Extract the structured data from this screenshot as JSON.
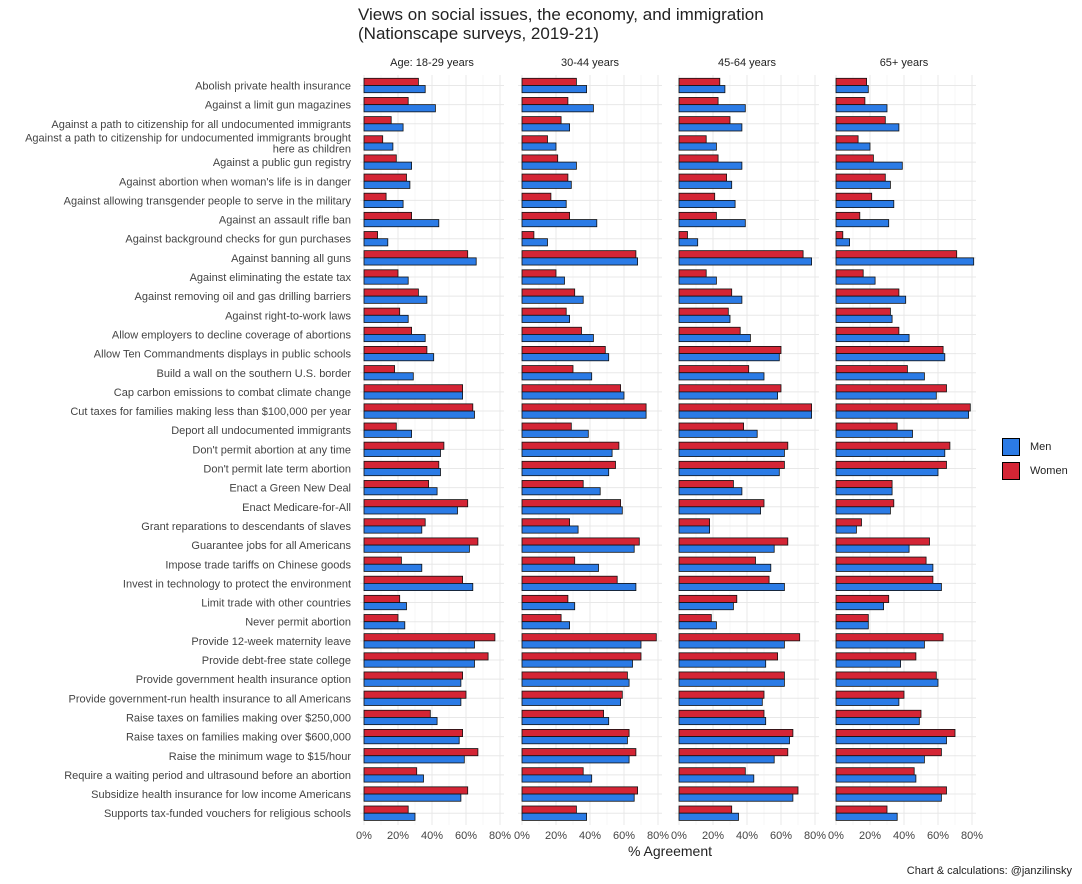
{
  "title": "Views on social issues, the economy, and immigration",
  "subtitle": "(Nationscape surveys, 2019-21)",
  "caption": "Chart & calculations: @janzilinsky",
  "colors": {
    "men": "#2b7be6",
    "women": "#d42535",
    "bar_border": "#111111",
    "grid": "#e8e8e8"
  },
  "chart_data": {
    "type": "bar",
    "orientation": "horizontal",
    "xlabel": "% Agreement",
    "xlim": [
      0,
      80
    ],
    "xticks": [
      "0%",
      "20%",
      "40%",
      "60%",
      "80%"
    ],
    "xtick_values": [
      0,
      20,
      40,
      60,
      80
    ],
    "grid": true,
    "legend_position": "right",
    "legend": [
      {
        "name": "Men",
        "color": "#2b7be6"
      },
      {
        "name": "Women",
        "color": "#d42535"
      }
    ],
    "panels": [
      "Age: 18-29 years",
      "30-44 years",
      "45-64 years",
      "65+ years"
    ],
    "categories": [
      "Abolish private health insurance",
      "Against a limit gun magazines",
      "Against a path to citizenship for all undocumented immigrants",
      "Against a path to citizenship for undocumented immigrants brought here as children",
      "Against a public gun registry",
      "Against abortion when woman's life is in danger",
      "Against allowing transgender people to serve in the military",
      "Against an assault rifle ban",
      "Against background checks for gun purchases",
      "Against banning all guns",
      "Against eliminating the estate tax",
      "Against removing oil and gas drilling barriers",
      "Against right-to-work laws",
      "Allow employers to decline coverage of abortions",
      "Allow Ten Commandments displays in public schools",
      "Build a wall on the southern U.S. border",
      "Cap carbon emissions to combat climate change",
      "Cut taxes for families making less than $100,000 per year",
      "Deport all undocumented immigrants",
      "Don't permit abortion at any time",
      "Don't permit late term abortion",
      "Enact a Green New Deal",
      "Enact Medicare-for-All",
      "Grant reparations to descendants of slaves",
      "Guarantee jobs for all Americans",
      "Impose trade tariffs on Chinese goods",
      "Invest in technology to protect the environment",
      "Limit trade with other countries",
      "Never permit abortion",
      "Provide 12-week maternity leave",
      "Provide debt-free state college",
      "Provide government health insurance option",
      "Provide government-run health insurance to all Americans",
      "Raise taxes on families making over $250,000",
      "Raise taxes on families making over $600,000",
      "Raise the minimum wage to $15/hour",
      "Require a waiting period and ultrasound before an abortion",
      "Subsidize health insurance for low income Americans",
      "Supports tax-funded vouchers for religious schools"
    ],
    "category_label_lines": {
      "Against a path to citizenship for undocumented immigrants brought here as children": [
        "Against a path to citizenship for undocumented immigrants brought",
        "here as children"
      ]
    },
    "series": [
      {
        "name": "Women",
        "panels": [
          [
            32,
            26,
            16,
            11,
            19,
            25,
            13,
            28,
            8,
            61,
            20,
            32,
            21,
            28,
            37,
            18,
            58,
            64,
            19,
            47,
            44,
            38,
            61,
            36,
            67,
            22,
            58,
            21,
            20,
            77,
            73,
            58,
            60,
            39,
            58,
            67,
            31,
            61,
            26
          ],
          [
            32,
            27,
            23,
            15,
            21,
            27,
            17,
            28,
            7,
            67,
            20,
            31,
            26,
            35,
            49,
            30,
            58,
            73,
            29,
            57,
            55,
            36,
            58,
            28,
            69,
            31,
            56,
            27,
            23,
            79,
            70,
            62,
            59,
            48,
            63,
            67,
            36,
            68,
            32
          ],
          [
            24,
            23,
            30,
            16,
            23,
            28,
            21,
            22,
            5,
            73,
            16,
            31,
            29,
            36,
            60,
            41,
            60,
            78,
            38,
            64,
            62,
            32,
            50,
            18,
            64,
            45,
            53,
            34,
            19,
            71,
            58,
            62,
            50,
            50,
            67,
            64,
            39,
            70,
            31
          ],
          [
            18,
            17,
            29,
            13,
            22,
            29,
            21,
            14,
            4,
            71,
            16,
            37,
            32,
            37,
            63,
            42,
            65,
            79,
            36,
            67,
            65,
            33,
            34,
            15,
            55,
            53,
            57,
            31,
            19,
            63,
            47,
            59,
            40,
            50,
            70,
            62,
            46,
            65,
            30
          ]
        ]
      },
      {
        "name": "Men",
        "panels": [
          [
            36,
            42,
            23,
            17,
            28,
            27,
            23,
            44,
            14,
            66,
            26,
            37,
            26,
            36,
            41,
            29,
            58,
            65,
            28,
            45,
            45,
            43,
            55,
            34,
            62,
            34,
            64,
            25,
            24,
            65,
            65,
            57,
            57,
            43,
            56,
            59,
            35,
            57,
            30
          ],
          [
            38,
            42,
            28,
            20,
            32,
            29,
            26,
            44,
            15,
            68,
            25,
            36,
            28,
            42,
            51,
            41,
            60,
            73,
            39,
            53,
            51,
            46,
            59,
            33,
            66,
            45,
            67,
            31,
            28,
            70,
            65,
            63,
            58,
            51,
            62,
            63,
            41,
            66,
            38
          ],
          [
            27,
            39,
            37,
            22,
            37,
            31,
            33,
            39,
            11,
            78,
            22,
            37,
            30,
            42,
            59,
            50,
            58,
            78,
            46,
            62,
            59,
            37,
            48,
            18,
            56,
            54,
            62,
            32,
            22,
            62,
            51,
            62,
            49,
            51,
            65,
            56,
            44,
            67,
            35
          ],
          [
            19,
            30,
            37,
            20,
            39,
            32,
            34,
            31,
            8,
            81,
            23,
            41,
            33,
            43,
            64,
            52,
            59,
            78,
            45,
            64,
            60,
            33,
            32,
            12,
            43,
            57,
            62,
            28,
            19,
            52,
            38,
            60,
            37,
            49,
            65,
            52,
            47,
            62,
            36
          ]
        ]
      }
    ]
  }
}
